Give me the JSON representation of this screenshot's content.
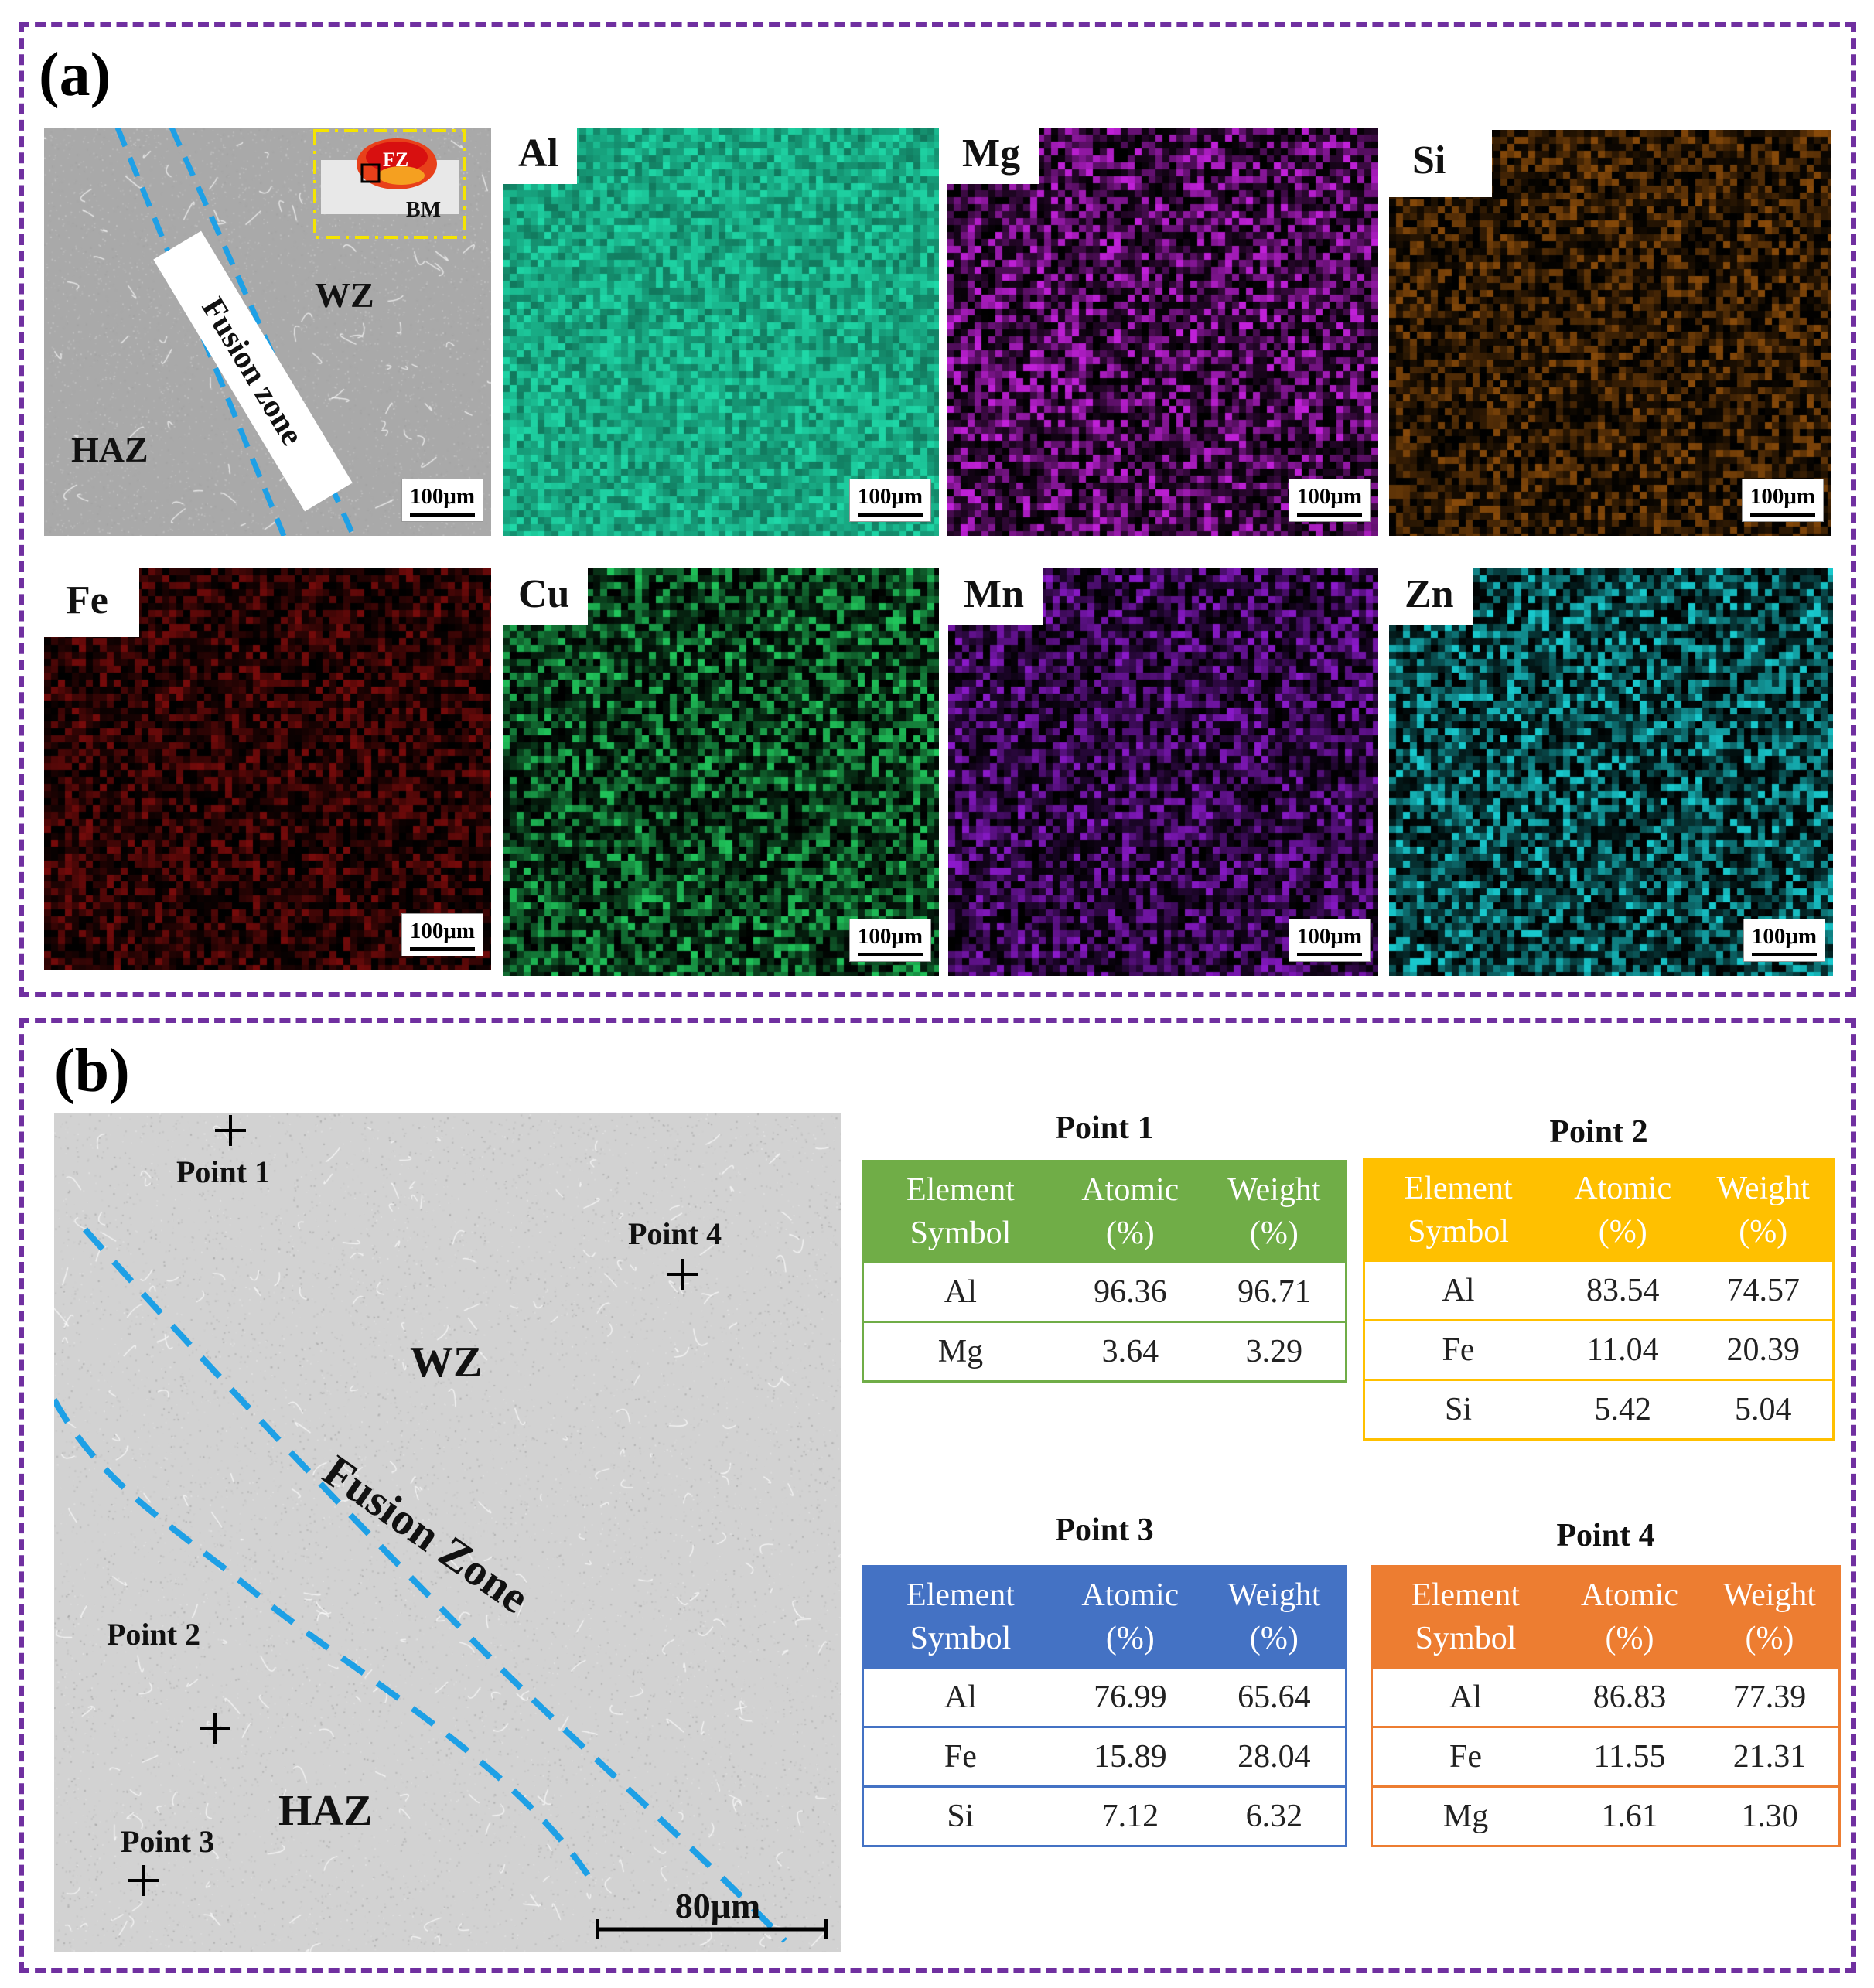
{
  "panel_a": {
    "label": "(a)",
    "sem": {
      "wz": "WZ",
      "haz": "HAZ",
      "fusion_zone": "Fusion zone",
      "scale": "100μm",
      "inset": {
        "fz": "FZ",
        "bm": "BM"
      }
    },
    "maps": [
      {
        "element": "Al",
        "scale": "100μm",
        "color": "#1fd9a8"
      },
      {
        "element": "Mg",
        "scale": "100μm",
        "color": "#c020d8"
      },
      {
        "element": "Si",
        "scale": "100μm",
        "color": "#e07a10"
      },
      {
        "element": "Fe",
        "scale": "100μm",
        "color": "#e01414"
      },
      {
        "element": "Cu",
        "scale": "100μm",
        "color": "#22d060"
      },
      {
        "element": "Mn",
        "scale": "100μm",
        "color": "#9a1ce0"
      },
      {
        "element": "Zn",
        "scale": "100μm",
        "color": "#18c8cc"
      }
    ]
  },
  "panel_b": {
    "label": "(b)",
    "sem": {
      "wz": "WZ",
      "haz": "HAZ",
      "fusion_zone": "Fusion Zone",
      "scale": "80μm",
      "points": [
        "Point 1",
        "Point 2",
        "Point 3",
        "Point 4"
      ]
    },
    "tables": [
      {
        "title": "Point 1",
        "color": "#70ad47",
        "headers": [
          "Element Symbol",
          "Atomic (%)",
          "Weight (%)"
        ],
        "rows": [
          [
            "Al",
            "96.36",
            "96.71"
          ],
          [
            "Mg",
            "3.64",
            "3.29"
          ]
        ]
      },
      {
        "title": "Point 2",
        "color": "#ffc000",
        "headers": [
          "Element Symbol",
          "Atomic (%)",
          "Weight (%)"
        ],
        "rows": [
          [
            "Al",
            "83.54",
            "74.57"
          ],
          [
            "Fe",
            "11.04",
            "20.39"
          ],
          [
            "Si",
            "5.42",
            "5.04"
          ]
        ]
      },
      {
        "title": "Point 3",
        "color": "#4472c4",
        "headers": [
          "Element Symbol",
          "Atomic (%)",
          "Weight (%)"
        ],
        "rows": [
          [
            "Al",
            "76.99",
            "65.64"
          ],
          [
            "Fe",
            "15.89",
            "28.04"
          ],
          [
            "Si",
            "7.12",
            "6.32"
          ]
        ]
      },
      {
        "title": "Point 4",
        "color": "#ed7d31",
        "headers": [
          "Element Symbol",
          "Atomic (%)",
          "Weight (%)"
        ],
        "rows": [
          [
            "Al",
            "86.83",
            "77.39"
          ],
          [
            "Fe",
            "11.55",
            "21.31"
          ],
          [
            "Mg",
            "1.61",
            "1.30"
          ]
        ]
      }
    ]
  }
}
